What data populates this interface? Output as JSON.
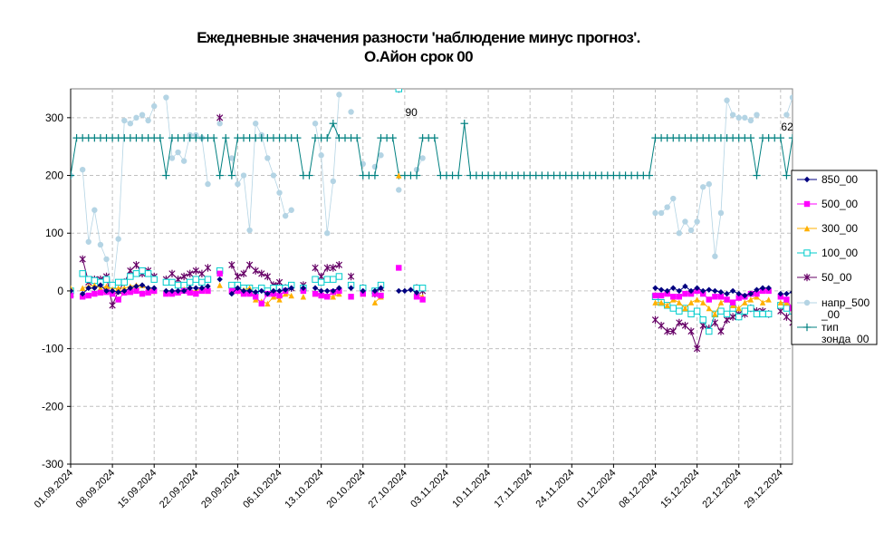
{
  "chart_data": {
    "type": "line",
    "title": "Ежедневные значения разности 'наблюдение минус прогноз'.",
    "subtitle": "О.Айон     срок 00",
    "ylim": [
      -300,
      350
    ],
    "y_ticks": [
      "-300",
      "-200",
      "-100",
      "0",
      "100",
      "200",
      "300"
    ],
    "x_ticks": [
      "01.09.2024",
      "08.09.2024",
      "15.09.2024",
      "22.09.2024",
      "29.09.2024",
      "06.10.2024",
      "13.10.2024",
      "20.10.2024",
      "27.10.2024",
      "03.11.2024",
      "10.11.2024",
      "17.11.2024",
      "24.11.2024",
      "01.12.2024",
      "08.12.2024",
      "15.12.2024",
      "22.12.2024",
      "29.12.2024"
    ],
    "x_start": "01.09.2024",
    "x_days": 122,
    "grid": true,
    "legend_position": "right",
    "annotations": [
      {
        "text": "90",
        "x": 57,
        "y": 290
      },
      {
        "text": "62",
        "x": 120,
        "y": 265
      }
    ],
    "series": [
      {
        "name": "850_00",
        "color": "#000080",
        "marker": "diamond",
        "values": [
          0,
          null,
          -5,
          5,
          5,
          10,
          0,
          0,
          -2,
          0,
          5,
          8,
          10,
          5,
          5,
          null,
          0,
          0,
          0,
          0,
          5,
          5,
          5,
          8,
          null,
          20,
          null,
          -5,
          5,
          0,
          0,
          -2,
          0,
          -5,
          0,
          0,
          2,
          5,
          null,
          5,
          null,
          5,
          0,
          0,
          0,
          5,
          null,
          5,
          null,
          0,
          null,
          0,
          5,
          null,
          null,
          0,
          0,
          2,
          -3,
          null,
          null,
          null,
          null,
          null,
          null,
          null,
          null,
          null,
          null,
          null,
          null,
          null,
          null,
          null,
          null,
          null,
          null,
          null,
          null,
          null,
          null,
          null,
          null,
          null,
          null,
          null,
          null,
          null,
          null,
          null,
          null,
          null,
          null,
          null,
          null,
          null,
          null,
          null,
          5,
          2,
          0,
          5,
          0,
          8,
          0,
          5,
          0,
          2,
          0,
          -2,
          -5,
          0,
          -5,
          -8,
          -5,
          2,
          5,
          5,
          null,
          -5,
          -5,
          -2
        ]
      },
      {
        "name": "500_00",
        "color": "#FF00FF",
        "marker": "square",
        "values": [
          -8,
          null,
          -10,
          -8,
          -5,
          -3,
          -2,
          -5,
          -15,
          -3,
          -2,
          0,
          -5,
          -3,
          0,
          null,
          -5,
          -5,
          -3,
          0,
          -3,
          -5,
          0,
          0,
          null,
          30,
          null,
          0,
          0,
          -5,
          -5,
          -10,
          -22,
          -5,
          -5,
          -8,
          0,
          null,
          null,
          0,
          null,
          -5,
          -8,
          -10,
          -2,
          0,
          null,
          -10,
          null,
          -5,
          null,
          -5,
          -8,
          null,
          null,
          40,
          null,
          null,
          -10,
          -15,
          null,
          null,
          null,
          null,
          null,
          null,
          null,
          null,
          null,
          null,
          null,
          null,
          null,
          null,
          null,
          null,
          null,
          null,
          null,
          null,
          null,
          null,
          null,
          null,
          null,
          null,
          null,
          null,
          null,
          null,
          null,
          null,
          null,
          null,
          null,
          null,
          null,
          null,
          -8,
          -8,
          -5,
          -10,
          -10,
          -5,
          -5,
          0,
          -5,
          -15,
          -10,
          -10,
          -15,
          -20,
          -12,
          -10,
          -5,
          -5,
          0,
          0,
          null,
          -10,
          -15,
          -30
        ]
      },
      {
        "name": "300_00",
        "color": "#FFB000",
        "marker": "triangle",
        "values": [
          5,
          null,
          5,
          8,
          10,
          5,
          8,
          3,
          5,
          5,
          8,
          10,
          10,
          5,
          0,
          null,
          0,
          -2,
          0,
          3,
          0,
          0,
          5,
          0,
          null,
          10,
          null,
          0,
          0,
          2,
          5,
          -15,
          -18,
          -22,
          -10,
          -15,
          -5,
          -8,
          null,
          -10,
          null,
          -5,
          -5,
          -10,
          -10,
          -5,
          null,
          -10,
          null,
          -5,
          null,
          -20,
          -10,
          null,
          null,
          200,
          null,
          null,
          -5,
          -10,
          null,
          null,
          null,
          null,
          null,
          null,
          null,
          null,
          null,
          null,
          null,
          null,
          null,
          null,
          null,
          null,
          null,
          null,
          null,
          null,
          null,
          null,
          null,
          null,
          null,
          null,
          null,
          null,
          null,
          null,
          null,
          null,
          null,
          null,
          null,
          null,
          null,
          null,
          -20,
          -20,
          -25,
          -15,
          -20,
          -30,
          -20,
          -15,
          -20,
          -30,
          -40,
          -20,
          -15,
          -25,
          -30,
          -20,
          -15,
          -10,
          -20,
          -15,
          null,
          -20,
          -20,
          -30
        ]
      },
      {
        "name": "100_00",
        "color": "#00CCCC",
        "marker": "square-open",
        "values": [
          0,
          null,
          30,
          20,
          18,
          15,
          20,
          10,
          15,
          15,
          25,
          30,
          35,
          30,
          20,
          null,
          15,
          15,
          10,
          10,
          15,
          20,
          15,
          20,
          null,
          35,
          null,
          10,
          10,
          5,
          5,
          0,
          5,
          0,
          5,
          5,
          5,
          10,
          null,
          5,
          null,
          20,
          15,
          20,
          20,
          25,
          null,
          10,
          null,
          5,
          null,
          0,
          10,
          null,
          null,
          350,
          null,
          null,
          5,
          5,
          null,
          null,
          null,
          null,
          null,
          null,
          null,
          null,
          null,
          null,
          null,
          null,
          null,
          null,
          null,
          null,
          null,
          null,
          null,
          null,
          null,
          null,
          null,
          null,
          null,
          null,
          null,
          null,
          null,
          null,
          null,
          null,
          null,
          null,
          null,
          null,
          null,
          null,
          -10,
          -20,
          -25,
          -30,
          -35,
          -30,
          -40,
          -35,
          -50,
          -70,
          -40,
          -35,
          -40,
          -30,
          -45,
          -35,
          -30,
          -40,
          -40,
          -40,
          null,
          -25,
          -30,
          -35
        ]
      },
      {
        "name": "50_00",
        "color": "#660066",
        "marker": "star",
        "values": [
          -5,
          null,
          55,
          15,
          20,
          20,
          25,
          -25,
          0,
          15,
          35,
          45,
          30,
          35,
          25,
          null,
          20,
          30,
          20,
          25,
          30,
          35,
          30,
          40,
          null,
          300,
          null,
          45,
          25,
          30,
          45,
          35,
          30,
          25,
          10,
          15,
          5,
          5,
          null,
          10,
          null,
          40,
          25,
          40,
          40,
          45,
          null,
          25,
          null,
          5,
          null,
          -5,
          5,
          null,
          null,
          350,
          null,
          null,
          5,
          0,
          null,
          null,
          null,
          null,
          null,
          null,
          null,
          null,
          null,
          null,
          null,
          null,
          null,
          null,
          null,
          null,
          null,
          null,
          null,
          null,
          null,
          null,
          null,
          null,
          null,
          null,
          null,
          null,
          null,
          null,
          null,
          null,
          null,
          null,
          null,
          null,
          null,
          null,
          -50,
          -60,
          -70,
          -70,
          -55,
          -60,
          -70,
          -100,
          -60,
          -65,
          -55,
          -70,
          -50,
          -45,
          -40,
          -40,
          -30,
          -35,
          -35,
          -40,
          null,
          -35,
          -45,
          -55
        ]
      },
      {
        "name": "напр_500_00",
        "color": "#B4D4E4",
        "marker": "circle",
        "values": [
          200,
          null,
          210,
          85,
          140,
          80,
          55,
          -5,
          90,
          295,
          290,
          300,
          305,
          295,
          320,
          null,
          335,
          230,
          240,
          225,
          270,
          270,
          265,
          185,
          null,
          290,
          null,
          230,
          185,
          200,
          105,
          290,
          270,
          230,
          200,
          170,
          130,
          140,
          null,
          null,
          null,
          290,
          235,
          100,
          190,
          340,
          null,
          310,
          null,
          220,
          null,
          215,
          235,
          null,
          null,
          175,
          null,
          null,
          210,
          230,
          null,
          null,
          null,
          null,
          null,
          null,
          null,
          null,
          null,
          null,
          null,
          null,
          null,
          null,
          null,
          null,
          null,
          null,
          null,
          null,
          null,
          null,
          null,
          null,
          null,
          null,
          null,
          null,
          null,
          null,
          null,
          null,
          null,
          null,
          null,
          null,
          null,
          null,
          135,
          135,
          145,
          160,
          100,
          120,
          105,
          120,
          180,
          185,
          60,
          135,
          330,
          305,
          300,
          300,
          295,
          305,
          null,
          null,
          null,
          null,
          305,
          335
        ]
      },
      {
        "name": "тип зонда_00",
        "color": "#008080",
        "marker": "plus",
        "values": [
          200,
          265,
          265,
          265,
          265,
          265,
          265,
          265,
          265,
          265,
          265,
          265,
          265,
          265,
          265,
          265,
          200,
          265,
          265,
          265,
          265,
          265,
          265,
          265,
          265,
          200,
          265,
          200,
          265,
          265,
          265,
          265,
          265,
          265,
          265,
          265,
          265,
          265,
          265,
          200,
          200,
          265,
          265,
          265,
          290,
          265,
          265,
          265,
          265,
          200,
          200,
          200,
          265,
          265,
          265,
          200,
          200,
          200,
          200,
          265,
          265,
          265,
          200,
          200,
          200,
          200,
          290,
          200,
          200,
          200,
          200,
          200,
          200,
          200,
          200,
          200,
          200,
          200,
          200,
          200,
          200,
          200,
          200,
          200,
          200,
          200,
          200,
          200,
          200,
          200,
          200,
          200,
          200,
          200,
          200,
          200,
          200,
          200,
          265,
          265,
          265,
          265,
          265,
          265,
          265,
          265,
          265,
          265,
          265,
          265,
          265,
          265,
          265,
          265,
          265,
          200,
          265,
          265,
          265,
          265,
          200,
          265,
          265,
          200
        ]
      }
    ]
  }
}
